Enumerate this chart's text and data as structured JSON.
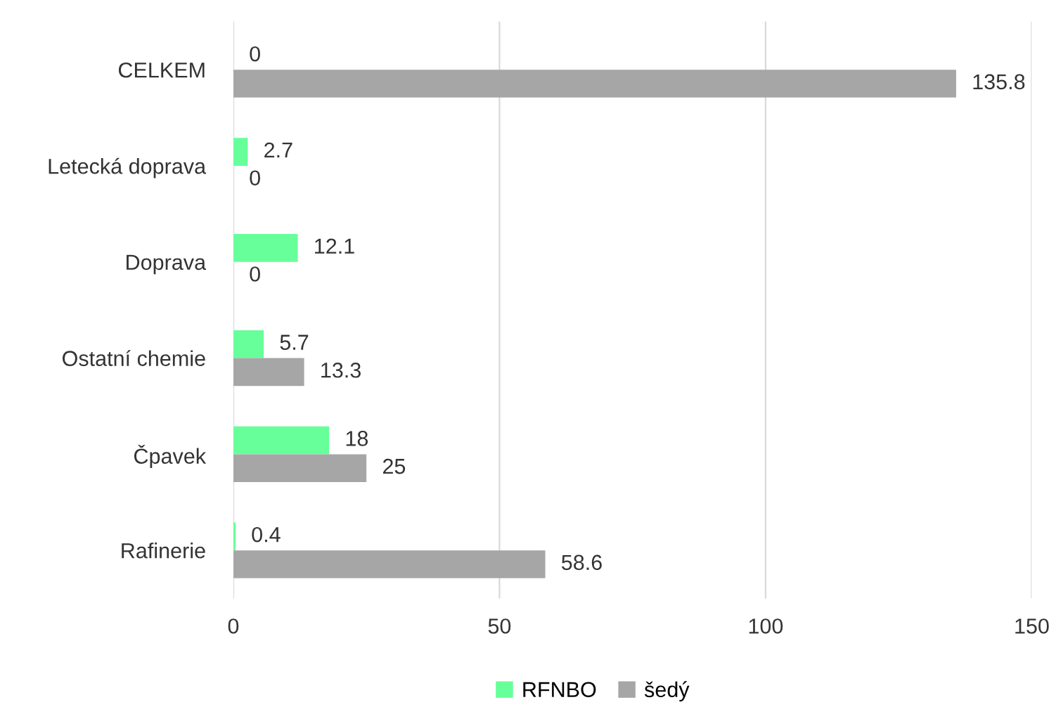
{
  "chart_data": {
    "type": "bar",
    "orientation": "horizontal",
    "categories": [
      "CELKEM",
      "Letecká doprava",
      "Doprava",
      "Ostatní chemie",
      "Čpavek",
      "Rafinerie"
    ],
    "series": [
      {
        "name": "RFNBO",
        "color": "#66ff99",
        "values": [
          0,
          2.7,
          12.1,
          5.7,
          18,
          0.4
        ]
      },
      {
        "name": "šedý",
        "color": "#a6a6a6",
        "values": [
          135.8,
          0,
          0,
          13.3,
          25,
          58.6
        ]
      }
    ],
    "xlim": [
      0,
      150
    ],
    "xticks": [
      0,
      50,
      100,
      150
    ],
    "grid": "x",
    "legend": "bottom",
    "data_labels": true
  }
}
